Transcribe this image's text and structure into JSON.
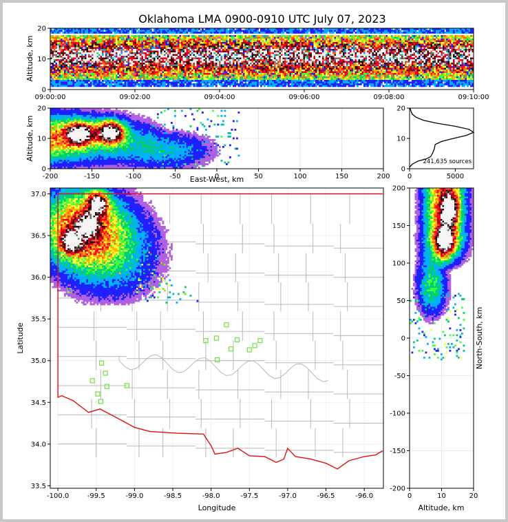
{
  "title": "Oklahoma LMA 0900-0910 UTC July 07, 2023",
  "chart_data": [
    {
      "panel": "altitude-time",
      "type": "heatmap",
      "xlabel": "",
      "ylabel": "Altitude, km",
      "xticks": [
        "09:00:00",
        "09:02:00",
        "09:04:00",
        "09:06:00",
        "09:08:00",
        "09:10:00"
      ],
      "xlim_minutes": [
        0,
        10
      ],
      "ylim": [
        0,
        20
      ],
      "yticks": [
        0,
        10,
        20
      ],
      "band_altitudes_km": {
        "sparse_low": [
          1,
          3
        ],
        "dense": [
          3,
          18
        ],
        "core": [
          8,
          14
        ]
      }
    },
    {
      "panel": "altitude-east-west",
      "type": "heatmap",
      "xlabel": "East-West, km",
      "ylabel": "Altitude, km",
      "xlim": [
        -200,
        200
      ],
      "xticks": [
        -200,
        -150,
        -100,
        -50,
        0,
        50,
        100,
        150,
        200
      ],
      "ylim": [
        0,
        20
      ],
      "yticks": [
        0,
        10,
        20
      ],
      "dense_cores": [
        {
          "x_km": -165,
          "alt_km": 11.5
        },
        {
          "x_km": -128,
          "alt_km": 12
        }
      ]
    },
    {
      "panel": "altitude-histogram",
      "type": "line",
      "xlim": [
        0,
        7000
      ],
      "xticks": [
        0,
        5000
      ],
      "ylim": [
        0,
        20
      ],
      "yticks": [
        0,
        10,
        20
      ],
      "annotation": "241,635 sources",
      "points": [
        [
          0,
          0.5
        ],
        [
          300,
          1.5
        ],
        [
          900,
          2.5
        ],
        [
          1800,
          3.2
        ],
        [
          2300,
          4
        ],
        [
          2500,
          5
        ],
        [
          2700,
          6.5
        ],
        [
          2800,
          8
        ],
        [
          3500,
          9
        ],
        [
          4800,
          10
        ],
        [
          6200,
          11
        ],
        [
          7000,
          12
        ],
        [
          6500,
          13
        ],
        [
          5000,
          14
        ],
        [
          3000,
          15
        ],
        [
          1500,
          16
        ],
        [
          700,
          17
        ],
        [
          300,
          18
        ],
        [
          150,
          19
        ],
        [
          60,
          20
        ]
      ]
    },
    {
      "panel": "plan-view",
      "type": "map",
      "xlabel": "Longitude",
      "ylabel": "Latitude",
      "xlim": [
        -100.1,
        -95.75
      ],
      "ylim": [
        33.47,
        37.07
      ],
      "xticks": [
        "-100.0",
        "-99.5",
        "-99.0",
        "-98.5",
        "-98.0",
        "-97.5",
        "-97.0",
        "-96.5",
        "-96.0"
      ],
      "yticks": [
        "33.5",
        "34.0",
        "34.5",
        "35.0",
        "35.5",
        "36.0",
        "36.5",
        "37.0"
      ],
      "stations": [
        [
          -99.43,
          34.97
        ],
        [
          -99.38,
          34.85
        ],
        [
          -99.55,
          34.76
        ],
        [
          -99.36,
          34.69
        ],
        [
          -99.48,
          34.6
        ],
        [
          -99.44,
          34.51
        ],
        [
          -99.1,
          34.7
        ],
        [
          -98.07,
          35.24
        ],
        [
          -97.93,
          35.27
        ],
        [
          -97.8,
          35.43
        ],
        [
          -97.66,
          35.25
        ],
        [
          -97.36,
          35.24
        ],
        [
          -97.43,
          35.18
        ],
        [
          -97.5,
          35.13
        ],
        [
          -97.74,
          35.14
        ],
        [
          -97.92,
          35.01
        ],
        [
          -99.85,
          35.84
        ]
      ],
      "dense_cores": [
        {
          "lon": -99.48,
          "lat": 36.88
        },
        {
          "lon": -99.6,
          "lat": 36.62
        },
        {
          "lon": -99.82,
          "lat": 36.43
        }
      ]
    },
    {
      "panel": "north-south-altitude",
      "type": "heatmap",
      "xlabel": "Altitude, km",
      "ylabel": "North-South, km",
      "xlim": [
        0,
        20
      ],
      "xticks": [
        0,
        10,
        20
      ],
      "ylim": [
        -200,
        200
      ],
      "yticks": [
        -200,
        -150,
        -100,
        -50,
        0,
        50,
        100,
        150,
        200
      ],
      "dense_cores": [
        {
          "alt_km": 12.5,
          "y_km": 172
        },
        {
          "alt_km": 11,
          "y_km": 132
        }
      ]
    }
  ]
}
